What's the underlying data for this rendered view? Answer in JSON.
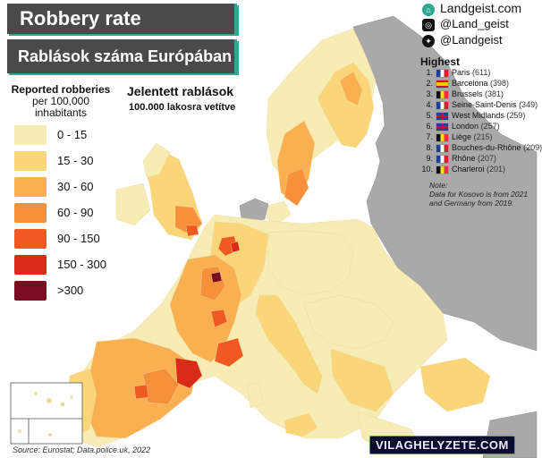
{
  "title": "Robbery rate",
  "subtitle": "Rablások száma Európában",
  "legend": {
    "title": "Reported robberies",
    "unit_line1": "per 100,000",
    "unit_line2": "inhabitants",
    "title_hu": "Jelentett rablások",
    "unit_hu": "100.000 lakosra vetítve",
    "classes": [
      {
        "label": "0  -  15",
        "color": "#f7ecb3"
      },
      {
        "label": "15  -  30",
        "color": "#fbd679"
      },
      {
        "label": "30  -  60",
        "color": "#fab050"
      },
      {
        "label": "60  -  90",
        "color": "#f7903a"
      },
      {
        "label": "90  -  150",
        "color": "#f05a22"
      },
      {
        "label": "150 - 300",
        "color": "#da2a18"
      },
      {
        "label": ">300",
        "color": "#7a0d22"
      }
    ]
  },
  "social": {
    "website": "Landgeist.com",
    "instagram": "@Land_geist",
    "twitter": "@Landgeist"
  },
  "highest": {
    "title": "Highest",
    "items": [
      {
        "rank": "1.",
        "name": "Paris",
        "value": "(611)",
        "flag": "fr"
      },
      {
        "rank": "2.",
        "name": "Barcelona",
        "value": "(398)",
        "flag": "es"
      },
      {
        "rank": "3.",
        "name": "Brussels",
        "value": "(381)",
        "flag": "be"
      },
      {
        "rank": "4.",
        "name": "Seine-Saint-Denis",
        "value": "(349)",
        "flag": "fr"
      },
      {
        "rank": "5.",
        "name": "West Midlands",
        "value": "(259)",
        "flag": "uk"
      },
      {
        "rank": "6.",
        "name": "London",
        "value": "(257)",
        "flag": "uk"
      },
      {
        "rank": "7.",
        "name": "Liège",
        "value": "(215)",
        "flag": "be"
      },
      {
        "rank": "8.",
        "name": "Bouches-du-Rhône",
        "value": "(209)",
        "flag": "fr"
      },
      {
        "rank": "9.",
        "name": "Rhône",
        "value": "(207)",
        "flag": "fr"
      },
      {
        "rank": "10.",
        "name": "Charleroi",
        "value": "(201)",
        "flag": "be"
      }
    ]
  },
  "note": {
    "label": "Note:",
    "text": "Data for Kosovo is from 2021 and Germany from 2019."
  },
  "source": "Source: Eurostat; Data.police.uk, 2022",
  "watermark": "VILAGHELYZETE.COM",
  "colors": {
    "no_data": "#a9a9a9",
    "sea": "#ffffff",
    "title_bg": "#4a4a4a",
    "accent": "#2fa88f"
  }
}
